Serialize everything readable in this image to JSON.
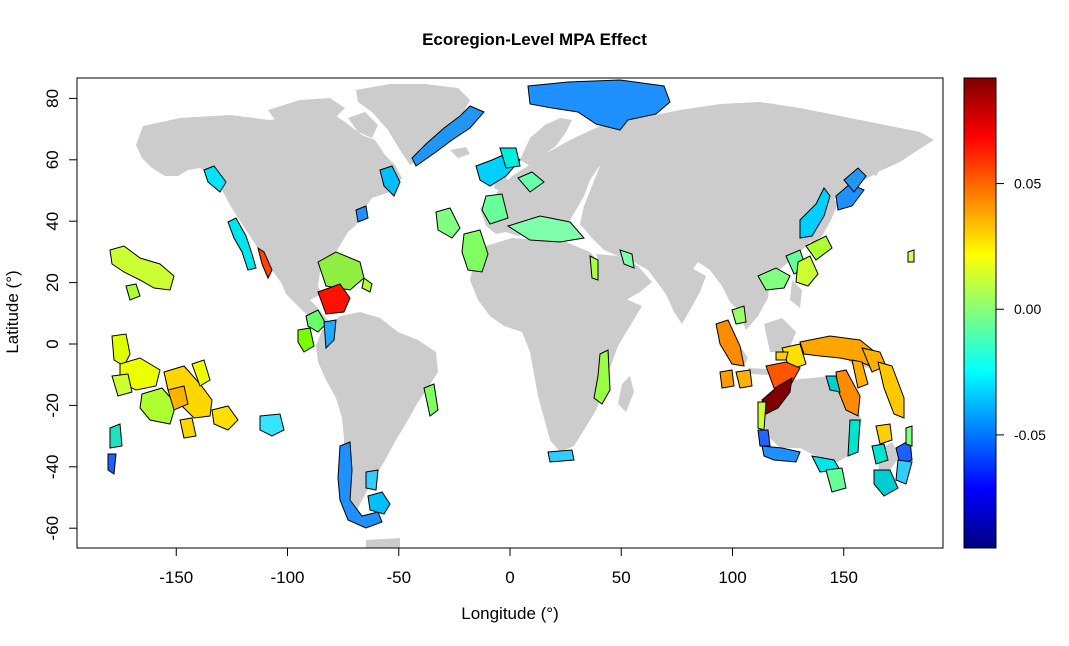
{
  "title": "Ecoregion-Level MPA Effect",
  "xlabel": "Longitude (°)",
  "ylabel": "Latitude (°)",
  "map": {
    "x_ticks": [
      "-150",
      "-100",
      "-50",
      "0",
      "50",
      "100",
      "150"
    ],
    "y_ticks": [
      "80",
      "60",
      "40",
      "20",
      "0",
      "-20",
      "-40",
      "-60"
    ]
  },
  "colorbar": {
    "ticks": [
      "0.05",
      "0.00",
      "-0.05"
    ],
    "colors": [
      "#00007F",
      "#0000FF",
      "#007FFF",
      "#00FFFF",
      "#7FFF7F",
      "#FFFF00",
      "#FF7F00",
      "#FF0000",
      "#7F0000"
    ],
    "range": [
      -0.095,
      0.092
    ]
  },
  "colors": {
    "land": "#CCCCCC",
    "outline": "#000000"
  }
}
